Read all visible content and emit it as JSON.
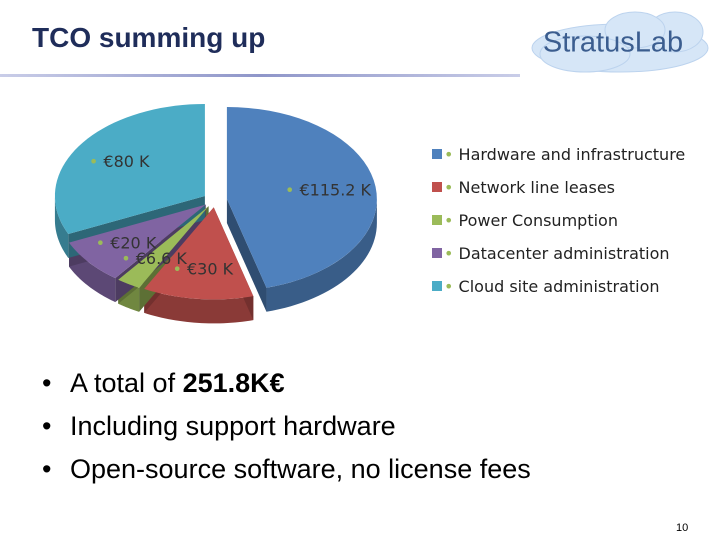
{
  "slide": {
    "title": "TCO summing up",
    "logo": "StratusLab",
    "bullets": [
      {
        "text": "A total of ",
        "bold": "251.8K€"
      },
      {
        "text": "Including support hardware"
      },
      {
        "text": "Open-source software, no license fees"
      }
    ],
    "page": "10"
  },
  "chart_data": {
    "type": "pie",
    "categories": [
      "Hardware and infrastructure",
      "Network line leases",
      "Power Consumption",
      "Datacenter administration",
      "Cloud site administration"
    ],
    "values": [
      115.2,
      30,
      6.6,
      20,
      80
    ],
    "value_labels": [
      "€115.2 K",
      "€30 K",
      "€6.6 K",
      "€20 K",
      "€80 K"
    ],
    "colors": [
      "#4f81bd",
      "#c0504d",
      "#9bbb59",
      "#8064a2",
      "#4bacc6"
    ],
    "legend": "right"
  }
}
